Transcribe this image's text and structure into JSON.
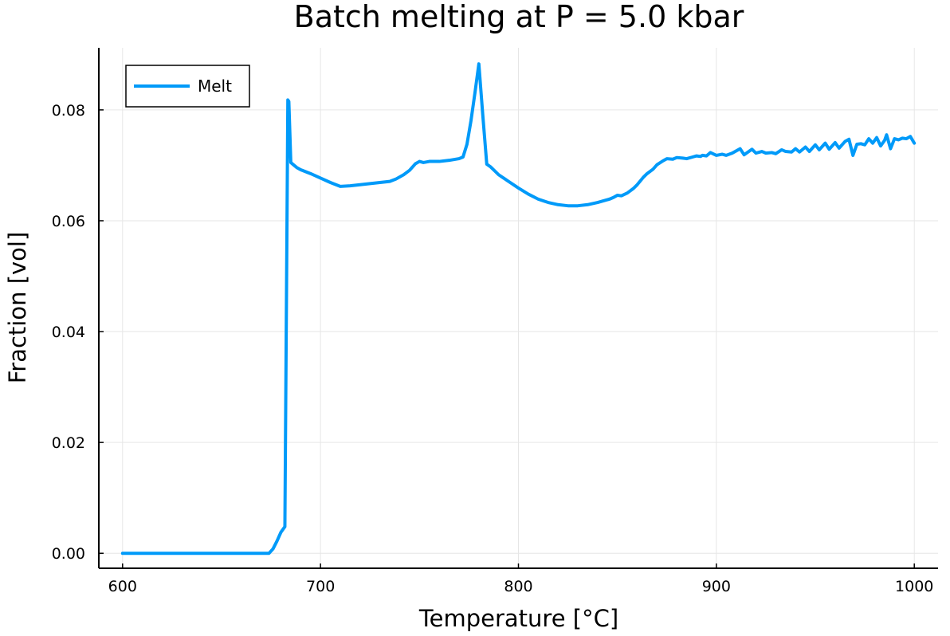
{
  "chart_data": {
    "type": "line",
    "title": "Batch melting at P = 5.0 kbar",
    "xlabel": "Temperature [°C]",
    "ylabel": "Fraction [vol]",
    "xlim": [
      588,
      1012
    ],
    "ylim": [
      -0.0027,
      0.0912
    ],
    "xticks": [
      600,
      700,
      800,
      900,
      1000
    ],
    "xtick_labels": [
      "600",
      "700",
      "800",
      "900",
      "1000"
    ],
    "yticks": [
      0.0,
      0.02,
      0.04,
      0.06,
      0.08
    ],
    "ytick_labels": [
      "0.00",
      "0.02",
      "0.04",
      "0.06",
      "0.08"
    ],
    "grid": true,
    "legend": "top-left",
    "series": [
      {
        "name": "Melt",
        "color": "#009af9",
        "x": [
          600,
          605,
          610,
          615,
          620,
          625,
          630,
          635,
          640,
          645,
          650,
          655,
          660,
          665,
          670,
          674,
          676,
          678,
          680,
          682,
          683.5,
          684,
          684.5,
          685,
          686,
          688,
          690,
          695,
          700,
          705,
          710,
          715,
          720,
          725,
          730,
          735,
          738,
          742,
          745,
          748,
          750,
          752,
          755,
          760,
          765,
          770,
          772,
          774,
          776,
          778,
          780,
          782,
          784,
          786,
          788,
          790,
          795,
          800,
          805,
          810,
          815,
          820,
          825,
          830,
          835,
          840,
          843,
          846,
          848,
          850,
          852,
          855,
          858,
          860,
          863,
          865,
          868,
          870,
          873,
          875,
          878,
          880,
          883,
          885,
          888,
          890,
          892,
          893,
          895,
          897,
          900,
          903,
          905,
          908,
          910,
          912,
          914,
          916,
          918,
          920,
          923,
          925,
          928,
          930,
          933,
          935,
          938,
          940,
          942,
          945,
          947,
          950,
          952,
          955,
          957,
          960,
          962,
          965,
          967,
          969,
          971,
          973,
          975,
          977,
          979,
          981,
          983,
          985,
          986,
          988,
          990,
          992,
          994,
          996,
          998,
          1000
        ],
        "y": [
          0,
          0,
          0,
          0,
          0,
          0,
          0,
          0,
          0,
          0,
          0,
          0,
          0,
          0,
          0,
          0,
          0.0008,
          0.0022,
          0.0038,
          0.0048,
          0.0818,
          0.0815,
          0.076,
          0.0705,
          0.0702,
          0.0696,
          0.0692,
          0.0685,
          0.0677,
          0.0669,
          0.0662,
          0.0663,
          0.0665,
          0.0667,
          0.0669,
          0.0671,
          0.0675,
          0.0683,
          0.0691,
          0.0703,
          0.0707,
          0.0705,
          0.0707,
          0.0707,
          0.0709,
          0.0712,
          0.0715,
          0.0738,
          0.078,
          0.083,
          0.0883,
          0.079,
          0.0702,
          0.0697,
          0.069,
          0.0683,
          0.0671,
          0.0659,
          0.0648,
          0.0639,
          0.0633,
          0.0629,
          0.0627,
          0.0627,
          0.0629,
          0.0633,
          0.0636,
          0.0639,
          0.0642,
          0.0646,
          0.0645,
          0.065,
          0.0658,
          0.0665,
          0.0678,
          0.0685,
          0.0693,
          0.0701,
          0.0708,
          0.0712,
          0.0711,
          0.0714,
          0.0713,
          0.0712,
          0.0715,
          0.0717,
          0.0716,
          0.0718,
          0.0717,
          0.0723,
          0.0718,
          0.072,
          0.0718,
          0.0722,
          0.0726,
          0.073,
          0.0719,
          0.0724,
          0.0729,
          0.0722,
          0.0725,
          0.0722,
          0.0723,
          0.0721,
          0.0728,
          0.0725,
          0.0724,
          0.073,
          0.0724,
          0.0733,
          0.0725,
          0.0737,
          0.0728,
          0.074,
          0.0729,
          0.0741,
          0.0731,
          0.0743,
          0.0747,
          0.0718,
          0.0738,
          0.0739,
          0.0737,
          0.0748,
          0.074,
          0.075,
          0.0735,
          0.0745,
          0.0755,
          0.073,
          0.0748,
          0.0746,
          0.0749,
          0.0748,
          0.0752,
          0.074
        ]
      }
    ]
  }
}
